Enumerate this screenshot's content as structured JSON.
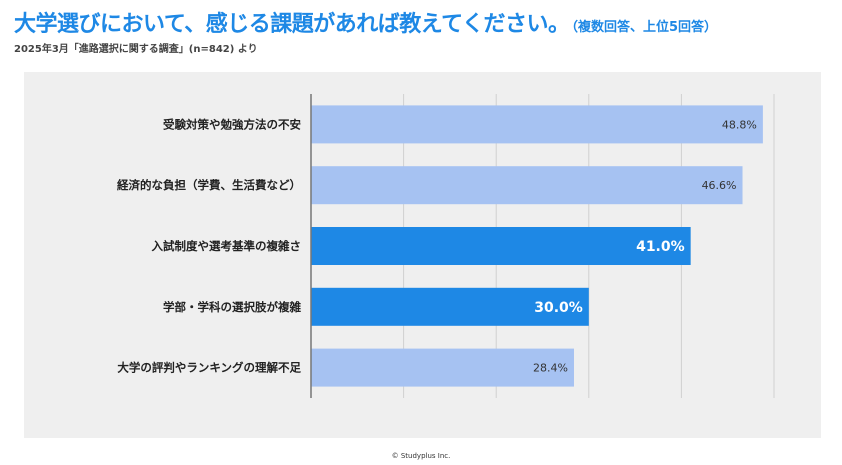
{
  "header": {
    "title": "大学選びにおいて、感じる課題があれば教えてください。",
    "title_note": "（複数回答、上位5回答）",
    "source": "2025年3月「進路選択に関する調査」(n=842) より"
  },
  "footer": {
    "copyright": "© Studyplus Inc."
  },
  "colors": {
    "title": "#1E88E5",
    "bar_light": "#A6C2F2",
    "bar_highlight": "#1E88E5",
    "panel": "#efefef",
    "grid": "#d0d0d0"
  },
  "chart_data": {
    "type": "bar",
    "orientation": "horizontal",
    "categories": [
      "受験対策や勉強方法の不安",
      "経済的な負担（学費、生活費など）",
      "入試制度や選考基準の複雑さ",
      "学部・学科の選択肢が複雑",
      "大学の評判やランキングの理解不足"
    ],
    "values": [
      48.8,
      46.6,
      41.0,
      30.0,
      28.4
    ],
    "value_labels": [
      "48.8%",
      "46.6%",
      "41.0%",
      "30.0%",
      "28.4%"
    ],
    "highlighted": [
      false,
      false,
      true,
      true,
      false
    ],
    "xlim": [
      0,
      50
    ],
    "grid": true
  }
}
